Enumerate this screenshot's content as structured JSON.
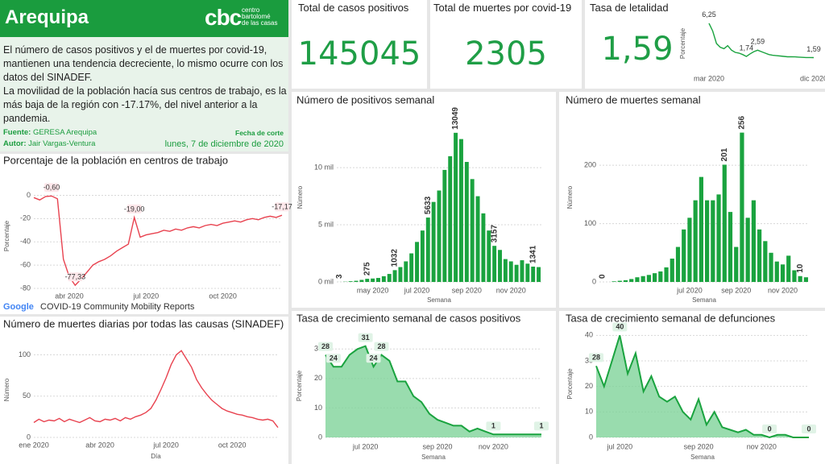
{
  "header": {
    "title": "Arequipa",
    "logo": "cbc",
    "logo_text": [
      "centro",
      "bartolomé",
      "de las casas"
    ]
  },
  "summary": [
    "El número de casos positivos y el de muertes por covid-19, mantienen una tendencia decreciente, lo mismo ocurre con los datos del SINADEF.",
    "La movilidad de la población hacía sus centros de trabajo, es la más baja de la región con -17.17%, del nivel anterior a la pandemia."
  ],
  "source": {
    "fuente_label": "Fuente:",
    "fuente": "GERESA Arequipa",
    "autor_label": "Autor:",
    "autor": "Jair Vargas-Ventura",
    "fecha_label": "Fecha de corte",
    "fecha": "lunes, 7 de diciembre de 2020"
  },
  "kpis": [
    {
      "title": "Total de casos positivos",
      "value": 145045
    },
    {
      "title": "Total de muertes por covid-19",
      "value": 2305
    },
    {
      "title": "Tasa de letalidad",
      "value": "1,59"
    }
  ],
  "chart_data": [
    {
      "type": "line",
      "y_title": "Porcentaje",
      "color": "#1aa33f",
      "categories": [
        "mar 2020",
        null,
        null,
        null,
        null,
        null,
        null,
        null,
        null,
        null,
        null,
        null,
        null,
        null,
        null,
        null,
        null,
        null,
        null,
        null,
        null,
        null,
        null,
        null,
        null,
        null,
        null,
        null,
        "dic 2020"
      ],
      "values": [
        6.25,
        5.2,
        3.5,
        3.0,
        2.8,
        3.2,
        2.6,
        2.3,
        2.2,
        2.0,
        1.74,
        2.1,
        2.4,
        2.59,
        2.4,
        2.2,
        2.0,
        1.9,
        1.85,
        1.8,
        1.75,
        1.7,
        1.7,
        1.68,
        1.65,
        1.62,
        1.6,
        1.6,
        1.59
      ],
      "value_labels": [
        "6,25",
        null,
        null,
        null,
        null,
        null,
        null,
        null,
        null,
        null,
        "1,74",
        null,
        null,
        "2,59",
        null,
        null,
        null,
        null,
        null,
        null,
        null,
        null,
        null,
        null,
        null,
        null,
        null,
        null,
        "1,59"
      ],
      "ylim": [
        0,
        7
      ]
    },
    {
      "type": "line",
      "title": "Porcentaje de la población en centros de trabajo",
      "y_title": "Porcentaje",
      "color": "#e8424f",
      "grid": true,
      "source_logo": "Google",
      "source": "COVID-19 Community Mobility Reports",
      "categories": [
        null,
        null,
        null,
        null,
        null,
        null,
        "abr 2020",
        null,
        null,
        null,
        null,
        null,
        null,
        null,
        null,
        null,
        null,
        null,
        null,
        "jul 2020",
        null,
        null,
        null,
        null,
        null,
        null,
        null,
        null,
        null,
        null,
        null,
        null,
        "oct 2020",
        null,
        null,
        null,
        null,
        null,
        null,
        null,
        null,
        null,
        null
      ],
      "values": [
        -2,
        -4,
        -1,
        -0.6,
        -3,
        -55,
        -70,
        -77.33,
        -72,
        -66,
        -60,
        -57,
        -55,
        -52,
        -48,
        -45,
        -42,
        -19,
        -36,
        -34,
        -33,
        -32,
        -30,
        -31,
        -29,
        -30,
        -28,
        -27,
        -28,
        -26,
        -25,
        -26,
        -24,
        -23,
        -22,
        -23,
        -21,
        -20,
        -21,
        -19,
        -18,
        -19,
        -17.17
      ],
      "value_labels": [
        null,
        null,
        null,
        "-0,60",
        null,
        null,
        null,
        "-77,33",
        null,
        null,
        null,
        null,
        null,
        null,
        null,
        null,
        null,
        "-19,00",
        null,
        null,
        null,
        null,
        null,
        null,
        null,
        null,
        null,
        null,
        null,
        null,
        null,
        null,
        null,
        null,
        null,
        null,
        null,
        null,
        null,
        null,
        null,
        null,
        "-17,17"
      ],
      "ylim": [
        -80,
        10
      ],
      "yticks": [
        -80,
        -60,
        -40,
        -20,
        0
      ]
    },
    {
      "type": "line",
      "title": "Número de muertes diarias por todas las causas (SINADEF)",
      "x_title": "Día",
      "y_title": "Número",
      "color": "#e8424f",
      "grid": true,
      "categories": [
        "ene 2020",
        null,
        null,
        null,
        null,
        null,
        null,
        null,
        null,
        null,
        null,
        null,
        null,
        "abr 2020",
        null,
        null,
        null,
        null,
        null,
        null,
        null,
        null,
        null,
        null,
        null,
        null,
        "jul 2020",
        null,
        null,
        null,
        null,
        null,
        null,
        null,
        null,
        null,
        null,
        null,
        null,
        "oct 2020",
        null,
        null,
        null,
        null,
        null,
        null,
        null,
        null,
        null
      ],
      "values": [
        18,
        22,
        19,
        21,
        20,
        23,
        19,
        22,
        20,
        18,
        21,
        24,
        20,
        19,
        22,
        21,
        23,
        20,
        24,
        22,
        25,
        27,
        30,
        35,
        45,
        58,
        72,
        88,
        100,
        105,
        95,
        85,
        70,
        60,
        52,
        45,
        40,
        35,
        32,
        30,
        28,
        27,
        25,
        24,
        22,
        21,
        22,
        20,
        12
      ],
      "ylim": [
        0,
        115
      ],
      "yticks": [
        0,
        50,
        100
      ]
    },
    {
      "type": "bar",
      "title": "Número de positivos semanal",
      "x_title": "Semana",
      "y_title": "Número",
      "color": "#1aa33f",
      "grid": true,
      "categories": [
        null,
        null,
        null,
        null,
        null,
        null,
        "may 2020",
        null,
        null,
        null,
        null,
        null,
        null,
        null,
        "jul 2020",
        null,
        null,
        null,
        null,
        null,
        null,
        null,
        null,
        "sep 2020",
        null,
        null,
        null,
        null,
        null,
        null,
        null,
        "nov 2020",
        null,
        null,
        null,
        null,
        null
      ],
      "values": [
        3,
        20,
        60,
        100,
        180,
        275,
        300,
        350,
        500,
        700,
        1032,
        1300,
        1800,
        2500,
        3500,
        4500,
        5633,
        7000,
        8000,
        9800,
        11000,
        13049,
        12500,
        10500,
        9000,
        7500,
        6000,
        4500,
        3157,
        2800,
        2000,
        1800,
        1500,
        1900,
        1600,
        1341,
        1300
      ],
      "value_labels": [
        "3",
        null,
        null,
        null,
        null,
        "275",
        null,
        null,
        null,
        null,
        "1032",
        null,
        null,
        null,
        null,
        null,
        "5633",
        null,
        null,
        null,
        null,
        "13049",
        null,
        null,
        null,
        null,
        null,
        null,
        "3157",
        null,
        null,
        null,
        null,
        null,
        null,
        "1341",
        null
      ],
      "ylim": [
        0,
        14800
      ],
      "yticks": [
        {
          "value": 0,
          "label": "0 mil"
        },
        {
          "value": 5000,
          "label": "5 mil"
        },
        {
          "value": 10000,
          "label": "10 mil"
        }
      ]
    },
    {
      "type": "bar",
      "title": "Número de muertes semanal",
      "x_title": "Semana",
      "y_title": "Número",
      "color": "#1aa33f",
      "grid": true,
      "categories": [
        null,
        null,
        null,
        null,
        null,
        null,
        null,
        null,
        null,
        null,
        null,
        null,
        null,
        null,
        null,
        "jul 2020",
        null,
        null,
        null,
        null,
        null,
        null,
        null,
        "sep 2020",
        null,
        null,
        null,
        null,
        null,
        null,
        null,
        "nov 2020",
        null,
        null,
        null,
        null
      ],
      "values": [
        0,
        0,
        1,
        2,
        3,
        5,
        8,
        10,
        12,
        15,
        18,
        25,
        40,
        60,
        90,
        110,
        140,
        180,
        140,
        140,
        150,
        201,
        120,
        60,
        256,
        110,
        140,
        90,
        70,
        50,
        35,
        30,
        45,
        20,
        10,
        8
      ],
      "value_labels": [
        "0",
        null,
        null,
        null,
        null,
        null,
        null,
        null,
        null,
        null,
        null,
        null,
        null,
        null,
        null,
        null,
        null,
        null,
        null,
        null,
        null,
        "201",
        null,
        null,
        "256",
        null,
        null,
        null,
        null,
        null,
        null,
        null,
        null,
        null,
        "10",
        null
      ],
      "ylim": [
        0,
        290
      ],
      "yticks": [
        0,
        100,
        200
      ]
    },
    {
      "type": "area",
      "title": "Tasa de crecimiento semanal de casos positivos",
      "x_title": "Semana",
      "y_title": "Porcentaje",
      "color": "#1aa33f",
      "grid": true,
      "categories": [
        null,
        null,
        null,
        null,
        null,
        "jul 2020",
        null,
        null,
        null,
        null,
        null,
        null,
        null,
        null,
        "sep 2020",
        null,
        null,
        null,
        null,
        null,
        null,
        "nov 2020",
        null,
        null,
        null,
        null,
        null,
        null
      ],
      "values": [
        28,
        24,
        24,
        28,
        30,
        31,
        24,
        28,
        26,
        19,
        19,
        14,
        12,
        8,
        6,
        5,
        4,
        4,
        2,
        3,
        2,
        1,
        1,
        1,
        1,
        1,
        1,
        1
      ],
      "value_labels": [
        "28",
        "24",
        null,
        null,
        null,
        "31",
        "24",
        "28",
        null,
        null,
        null,
        null,
        null,
        null,
        null,
        null,
        null,
        null,
        null,
        null,
        null,
        "1",
        null,
        null,
        null,
        null,
        null,
        "1"
      ],
      "ylim": [
        0,
        35
      ],
      "yticks": [
        0,
        10,
        20,
        30
      ]
    },
    {
      "type": "area",
      "title": "Tasa de crecimiento semanal de defunciones",
      "x_title": "Semana",
      "y_title": "Porcentaje",
      "color": "#1aa33f",
      "grid": true,
      "categories": [
        null,
        null,
        null,
        "jul 2020",
        null,
        null,
        null,
        null,
        null,
        null,
        null,
        null,
        null,
        "sep 2020",
        null,
        null,
        null,
        null,
        null,
        null,
        null,
        "nov 2020",
        null,
        null,
        null,
        null,
        null,
        null
      ],
      "values": [
        28,
        20,
        30,
        40,
        25,
        33,
        18,
        24,
        16,
        14,
        16,
        10,
        7,
        15,
        5,
        10,
        4,
        3,
        2,
        3,
        1,
        1,
        0,
        1,
        1,
        0,
        0,
        0
      ],
      "value_labels": [
        "28",
        null,
        null,
        "40",
        null,
        null,
        null,
        null,
        null,
        null,
        null,
        null,
        null,
        null,
        null,
        null,
        null,
        null,
        null,
        null,
        null,
        null,
        "0",
        null,
        null,
        null,
        null,
        "0"
      ],
      "ylim": [
        0,
        42
      ],
      "yticks": [
        0,
        10,
        20,
        30,
        40
      ]
    }
  ]
}
